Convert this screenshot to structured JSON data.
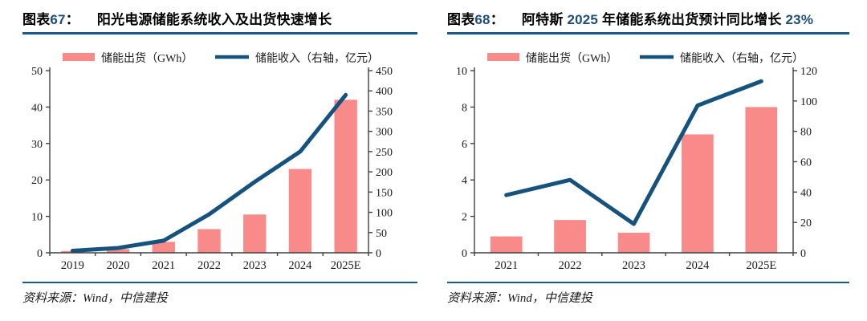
{
  "accent": {
    "rule_color": "#185a8d",
    "bar_color": "#f98a8a",
    "line_color": "#15527d",
    "title_number_color": "#1f4e79",
    "axis_color": "#404040"
  },
  "panels": [
    {
      "figure_label_runs": [
        {
          "t": "图表",
          "c": "cjk"
        },
        {
          "t": "67",
          "c": "num"
        },
        {
          "t": "：",
          "c": "cjk"
        }
      ],
      "title_runs": [
        {
          "t": "阳光电源储能系统收入及出货快速增长",
          "c": "cjk"
        }
      ],
      "source": "资料来源：Wind，中信建投"
    },
    {
      "figure_label_runs": [
        {
          "t": "图表",
          "c": "cjk"
        },
        {
          "t": "68",
          "c": "num"
        },
        {
          "t": "：",
          "c": "cjk"
        }
      ],
      "title_runs": [
        {
          "t": "阿特斯 ",
          "c": "cjk"
        },
        {
          "t": "2025",
          "c": "num"
        },
        {
          "t": " 年储能系统出货预计同比增长 ",
          "c": "cjk"
        },
        {
          "t": "23%",
          "c": "num"
        }
      ],
      "source": "资料来源：Wind，中信建投"
    }
  ],
  "chart_data": [
    {
      "type": "bar+line",
      "title": "阳光电源储能系统收入及出货快速增长",
      "categories": [
        "2019",
        "2020",
        "2021",
        "2022",
        "2023",
        "2024",
        "2025E"
      ],
      "series": [
        {
          "name": "储能出货（GWh）",
          "type": "bar",
          "axis": "left",
          "values": [
            0.5,
            1,
            3,
            6.5,
            10.5,
            23,
            42
          ]
        },
        {
          "name": "储能收入（右轴，亿元）",
          "type": "line",
          "axis": "right",
          "values": [
            5,
            12,
            30,
            95,
            175,
            250,
            390
          ]
        }
      ],
      "left_axis": {
        "min": 0,
        "max": 50,
        "step": 10
      },
      "right_axis": {
        "min": 0,
        "max": 450,
        "step": 50
      },
      "legend_position": "top",
      "grid": false
    },
    {
      "type": "bar+line",
      "title": "阿特斯 2025 年储能系统出货预计同比增长 23%",
      "categories": [
        "2021",
        "2022",
        "2023",
        "2024",
        "2025E"
      ],
      "series": [
        {
          "name": "储能出货（GWh）",
          "type": "bar",
          "axis": "left",
          "values": [
            0.9,
            1.8,
            1.1,
            6.5,
            8
          ]
        },
        {
          "name": "储能收入（右轴，亿元）",
          "type": "line",
          "axis": "right",
          "values": [
            38,
            48,
            19,
            97,
            113
          ]
        }
      ],
      "left_axis": {
        "min": 0,
        "max": 10,
        "step": 2
      },
      "right_axis": {
        "min": 0,
        "max": 120,
        "step": 20
      },
      "legend_position": "top",
      "grid": false
    }
  ]
}
